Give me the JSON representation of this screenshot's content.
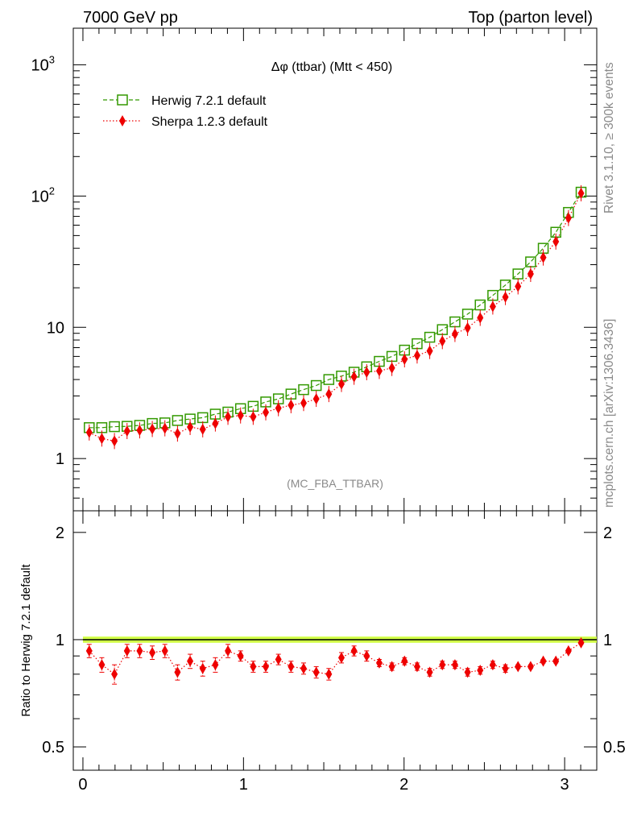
{
  "header": {
    "left": "7000 GeV pp",
    "right": "Top (parton level)"
  },
  "side": {
    "rivet": "Rivet 3.1.10, ≥ 300k events",
    "mcplots": "mcplots.cern.ch [arXiv:1306.3436]"
  },
  "chart_data": [
    {
      "type": "scatter",
      "title": "Δφ (ttbar) (Mtt < 450)",
      "watermark": "(MC_FBA_TTBAR)",
      "yscale": "log",
      "xlim": [
        -0.06,
        3.2
      ],
      "ylim": [
        0.4,
        1900
      ],
      "y_ticks": [
        {
          "v": 1,
          "label": "1"
        },
        {
          "v": 10,
          "label": "10"
        },
        {
          "v": 100,
          "label": "10",
          "sup": "2"
        },
        {
          "v": 1000,
          "label": "10",
          "sup": "3"
        }
      ],
      "legend_position": "top-left",
      "x": [
        0.0393,
        0.1178,
        0.1963,
        0.2749,
        0.3534,
        0.432,
        0.5105,
        0.589,
        0.6676,
        0.7461,
        0.8247,
        0.9032,
        0.9817,
        1.0603,
        1.1388,
        1.2174,
        1.2959,
        1.3744,
        1.453,
        1.5315,
        1.6101,
        1.6886,
        1.7671,
        1.8457,
        1.9242,
        2.0028,
        2.0813,
        2.1598,
        2.2384,
        2.3169,
        2.3955,
        2.474,
        2.5525,
        2.6311,
        2.7096,
        2.7882,
        2.8667,
        2.9452,
        3.0238,
        3.1023
      ],
      "series": [
        {
          "name": "Herwig 7.2.1 default",
          "color": "#339900",
          "marker": "open-square",
          "line": "dashed",
          "values": [
            1.72,
            1.72,
            1.75,
            1.76,
            1.79,
            1.85,
            1.87,
            1.95,
            2.0,
            2.05,
            2.18,
            2.26,
            2.4,
            2.5,
            2.7,
            2.85,
            3.1,
            3.35,
            3.6,
            4.0,
            4.25,
            4.55,
            5.0,
            5.5,
            6.0,
            6.7,
            7.5,
            8.4,
            9.6,
            11.0,
            12.6,
            14.8,
            17.5,
            21.0,
            25.5,
            31.5,
            40.0,
            53.0,
            75.0,
            107.0
          ]
        },
        {
          "name": "Sherpa 1.2.3 default",
          "color": "#ee0000",
          "marker": "filled-diamond",
          "line": "dotted",
          "values": [
            1.58,
            1.42,
            1.36,
            1.62,
            1.64,
            1.68,
            1.7,
            1.55,
            1.74,
            1.67,
            1.85,
            2.08,
            2.13,
            2.08,
            2.25,
            2.42,
            2.55,
            2.65,
            2.85,
            3.1,
            3.7,
            4.2,
            4.55,
            4.65,
            4.9,
            5.7,
            6.1,
            6.6,
            7.85,
            8.9,
            9.9,
            11.8,
            14.4,
            17.0,
            20.5,
            25.5,
            34.0,
            45.0,
            68.0,
            105.0
          ]
        }
      ]
    },
    {
      "type": "scatter",
      "ylabel": "Ratio to Herwig 7.2.1 default",
      "yscale": "log",
      "xlim": [
        -0.06,
        3.2
      ],
      "ylim": [
        0.43,
        2.3
      ],
      "y_ticks": [
        {
          "v": 0.5,
          "label": "0.5"
        },
        {
          "v": 1,
          "label": "1"
        },
        {
          "v": 2,
          "label": "2"
        }
      ],
      "x_ticks": [
        {
          "v": 0,
          "label": "0"
        },
        {
          "v": 1,
          "label": "1"
        },
        {
          "v": 2,
          "label": "2"
        },
        {
          "v": 3,
          "label": "3"
        }
      ],
      "reference": 1.0,
      "band_color": "#ccff33",
      "x": [
        0.0393,
        0.1178,
        0.1963,
        0.2749,
        0.3534,
        0.432,
        0.5105,
        0.589,
        0.6676,
        0.7461,
        0.8247,
        0.9032,
        0.9817,
        1.0603,
        1.1388,
        1.2174,
        1.2959,
        1.3744,
        1.453,
        1.5315,
        1.6101,
        1.6886,
        1.7671,
        1.8457,
        1.9242,
        2.0028,
        2.0813,
        2.1598,
        2.2384,
        2.3169,
        2.3955,
        2.474,
        2.5525,
        2.6311,
        2.7096,
        2.7882,
        2.8667,
        2.9452,
        3.0238,
        3.1023
      ],
      "series": [
        {
          "name": "Sherpa 1.2.3 default",
          "color": "#ee0000",
          "values": [
            0.93,
            0.85,
            0.8,
            0.93,
            0.93,
            0.92,
            0.93,
            0.81,
            0.87,
            0.83,
            0.85,
            0.93,
            0.9,
            0.84,
            0.84,
            0.88,
            0.84,
            0.83,
            0.81,
            0.8,
            0.89,
            0.93,
            0.9,
            0.86,
            0.84,
            0.87,
            0.84,
            0.81,
            0.85,
            0.85,
            0.81,
            0.82,
            0.85,
            0.83,
            0.84,
            0.84,
            0.87,
            0.87,
            0.93,
            0.98
          ],
          "errors": [
            0.04,
            0.04,
            0.05,
            0.04,
            0.04,
            0.04,
            0.04,
            0.04,
            0.04,
            0.04,
            0.04,
            0.04,
            0.03,
            0.03,
            0.03,
            0.03,
            0.03,
            0.03,
            0.03,
            0.03,
            0.03,
            0.03,
            0.03,
            0.02,
            0.02,
            0.02,
            0.02,
            0.02,
            0.02,
            0.02,
            0.02,
            0.02,
            0.02,
            0.02,
            0.01,
            0.01,
            0.01,
            0.01,
            0.01,
            0.01
          ]
        }
      ]
    }
  ]
}
